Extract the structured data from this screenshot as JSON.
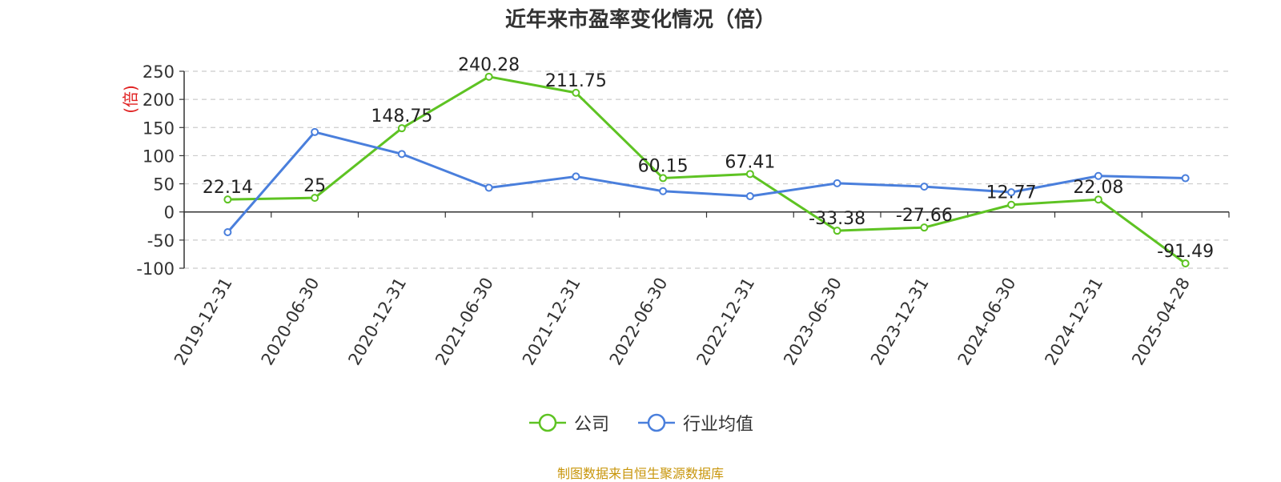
{
  "chart_data": {
    "type": "line",
    "title": "近年来市盈率变化情况（倍）",
    "ylabel": "(倍)",
    "ylim": [
      -100,
      250
    ],
    "yticks": [
      250,
      200,
      150,
      100,
      50,
      0,
      -50,
      -100
    ],
    "grid": true,
    "legend_position": "bottom",
    "categories": [
      "2019-12-31",
      "2020-06-30",
      "2020-12-31",
      "2021-06-30",
      "2021-12-31",
      "2022-06-30",
      "2022-12-31",
      "2023-06-30",
      "2023-12-31",
      "2024-06-30",
      "2024-12-31",
      "2025-04-28"
    ],
    "series": [
      {
        "name": "公司",
        "color": "#5ec323",
        "values": [
          22.14,
          25,
          148.75,
          240.28,
          211.75,
          60.15,
          67.41,
          -33.38,
          -27.66,
          12.77,
          22.08,
          -91.49
        ],
        "labels": [
          "22.14",
          "25",
          "148.75",
          "240.28",
          "211.75",
          "60.15",
          "67.41",
          "-33.38",
          "-27.66",
          "12.77",
          "22.08",
          "-91.49"
        ]
      },
      {
        "name": "行业均值",
        "color": "#4a7fdc",
        "values": [
          -36,
          142,
          103,
          43,
          63,
          37,
          28,
          51,
          45,
          35,
          64,
          60
        ]
      }
    ]
  },
  "source_note": "制图数据来自恒生聚源数据库"
}
